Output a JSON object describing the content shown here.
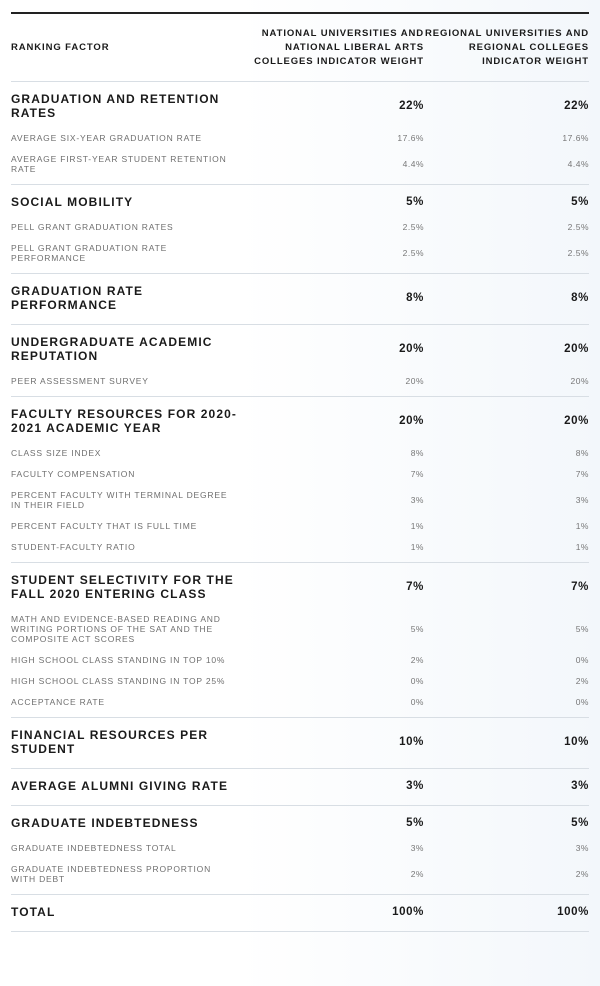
{
  "header": {
    "factor": "RANKING FACTOR",
    "national": "NATIONAL UNIVERSITIES AND NATIONAL LIBERAL ARTS COLLEGES INDICATOR WEIGHT",
    "regional": "REGIONAL UNIVERSITIES AND REGIONAL COLLEGES INDICATOR WEIGHT"
  },
  "groups": [
    {
      "name": "GRADUATION AND RETENTION RATES",
      "national": "22%",
      "regional": "22%",
      "subs": [
        {
          "name": "AVERAGE SIX-YEAR GRADUATION RATE",
          "national": "17.6%",
          "regional": "17.6%"
        },
        {
          "name": "AVERAGE FIRST-YEAR STUDENT RETENTION RATE",
          "national": "4.4%",
          "regional": "4.4%"
        }
      ]
    },
    {
      "name": "SOCIAL MOBILITY",
      "national": "5%",
      "regional": "5%",
      "subs": [
        {
          "name": "PELL GRANT GRADUATION RATES",
          "national": "2.5%",
          "regional": "2.5%"
        },
        {
          "name": "PELL GRANT GRADUATION RATE PERFORMANCE",
          "national": "2.5%",
          "regional": "2.5%"
        }
      ]
    },
    {
      "name": "GRADUATION RATE PERFORMANCE",
      "national": "8%",
      "regional": "8%",
      "subs": []
    },
    {
      "name": "UNDERGRADUATE ACADEMIC REPUTATION",
      "national": "20%",
      "regional": "20%",
      "subs": [
        {
          "name": "PEER ASSESSMENT SURVEY",
          "national": "20%",
          "regional": "20%"
        }
      ]
    },
    {
      "name": "FACULTY RESOURCES FOR 2020-2021 ACADEMIC YEAR",
      "national": "20%",
      "regional": "20%",
      "subs": [
        {
          "name": "CLASS SIZE INDEX",
          "national": "8%",
          "regional": "8%"
        },
        {
          "name": "FACULTY COMPENSATION",
          "national": "7%",
          "regional": "7%"
        },
        {
          "name": "PERCENT FACULTY WITH TERMINAL DEGREE IN THEIR FIELD",
          "national": "3%",
          "regional": "3%"
        },
        {
          "name": "PERCENT FACULTY THAT IS FULL TIME",
          "national": "1%",
          "regional": "1%"
        },
        {
          "name": "STUDENT-FACULTY RATIO",
          "national": "1%",
          "regional": "1%"
        }
      ]
    },
    {
      "name": "STUDENT SELECTIVITY FOR THE FALL 2020 ENTERING CLASS",
      "national": "7%",
      "regional": "7%",
      "subs": [
        {
          "name": "MATH AND EVIDENCE-BASED READING AND WRITING PORTIONS OF THE SAT AND THE COMPOSITE ACT SCORES",
          "national": "5%",
          "regional": "5%"
        },
        {
          "name": "HIGH SCHOOL CLASS STANDING IN TOP 10%",
          "national": "2%",
          "regional": "0%"
        },
        {
          "name": "HIGH SCHOOL CLASS STANDING IN TOP 25%",
          "national": "0%",
          "regional": "2%"
        },
        {
          "name": "ACCEPTANCE RATE",
          "national": "0%",
          "regional": "0%"
        }
      ]
    },
    {
      "name": "FINANCIAL RESOURCES PER STUDENT",
      "national": "10%",
      "regional": "10%",
      "subs": []
    },
    {
      "name": "AVERAGE ALUMNI GIVING RATE",
      "national": "3%",
      "regional": "3%",
      "subs": []
    },
    {
      "name": "GRADUATE INDEBTEDNESS",
      "national": "5%",
      "regional": "5%",
      "subs": [
        {
          "name": "GRADUATE INDEBTEDNESS TOTAL",
          "national": "3%",
          "regional": "3%"
        },
        {
          "name": "GRADUATE INDEBTEDNESS PROPORTION WITH DEBT",
          "national": "2%",
          "regional": "2%"
        }
      ]
    },
    {
      "name": "TOTAL",
      "national": "100%",
      "regional": "100%",
      "subs": []
    }
  ]
}
